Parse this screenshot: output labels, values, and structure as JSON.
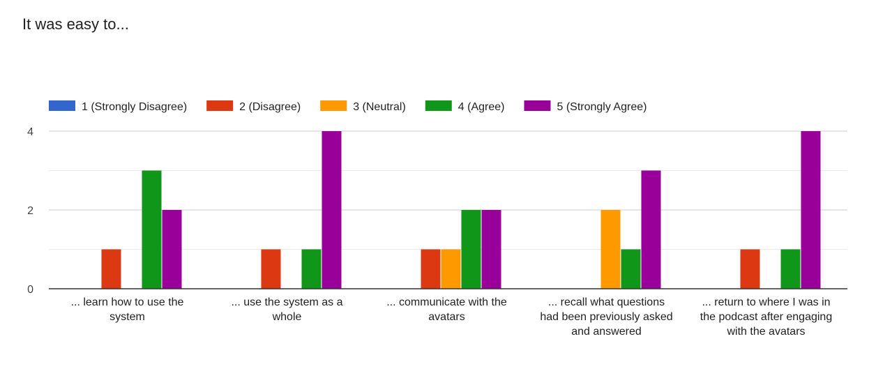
{
  "page": {
    "title": "It was easy to..."
  },
  "chart_data": {
    "type": "bar",
    "title": "It was easy to...",
    "xlabel": "",
    "ylabel": "",
    "ylim": [
      0,
      4
    ],
    "yticks": [
      0,
      2,
      4
    ],
    "grid": true,
    "legend_position": "top",
    "categories": [
      "... learn how to use the system",
      "... use the system as a whole",
      "... communicate with the avatars",
      "... recall what questions had been previously asked and answered",
      "... return to where I was in the podcast after engaging with the avatars"
    ],
    "category_lines": [
      [
        "... learn how to use the",
        "system"
      ],
      [
        "... use the system as a",
        "whole"
      ],
      [
        "... communicate with the",
        "avatars"
      ],
      [
        "... recall what questions",
        "had been previously asked",
        "and answered"
      ],
      [
        "... return to where I was in",
        "the podcast after engaging",
        "with the avatars"
      ]
    ],
    "series": [
      {
        "name": "1 (Strongly Disagree)",
        "color": "#3366cc",
        "values": [
          0,
          0,
          0,
          0,
          0
        ]
      },
      {
        "name": "2 (Disagree)",
        "color": "#dc3912",
        "values": [
          1,
          1,
          1,
          0,
          1
        ]
      },
      {
        "name": "3 (Neutral)",
        "color": "#ff9900",
        "values": [
          0,
          0,
          1,
          2,
          0
        ]
      },
      {
        "name": "4 (Agree)",
        "color": "#109618",
        "values": [
          3,
          1,
          2,
          1,
          1
        ]
      },
      {
        "name": "5 (Strongly Agree)",
        "color": "#990099",
        "values": [
          2,
          4,
          2,
          3,
          4
        ]
      }
    ]
  }
}
